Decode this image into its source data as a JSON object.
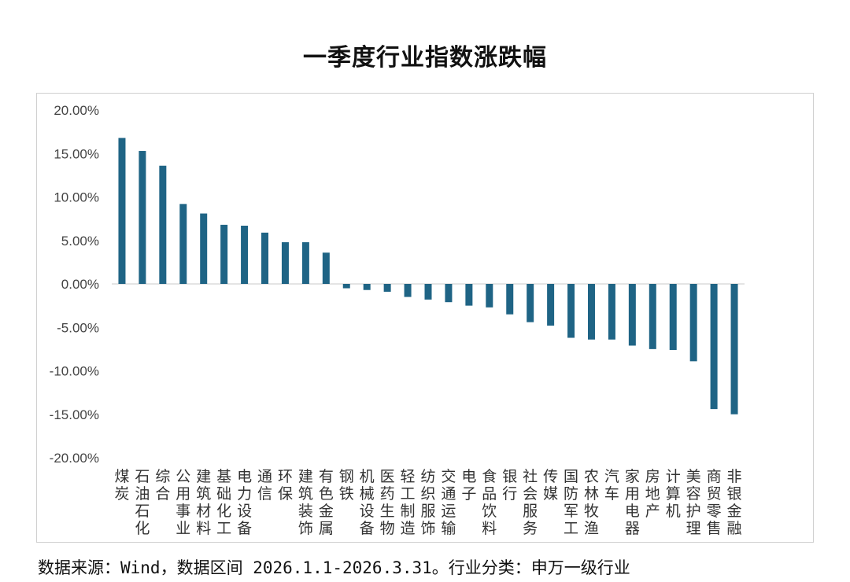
{
  "chart_data": {
    "type": "bar",
    "title": "一季度行业指数涨跌幅",
    "xlabel": "",
    "ylabel": "",
    "ylim": [
      -20,
      20
    ],
    "ytick_step": 5,
    "ytick_labels": [
      "20.00%",
      "15.00%",
      "10.00%",
      "5.00%",
      "0.00%",
      "-5.00%",
      "-10.00%",
      "-15.00%",
      "-20.00%"
    ],
    "bar_color": "#1f6485",
    "grid": false,
    "categories": [
      "煤炭",
      "石油石化",
      "综合",
      "公用事业",
      "建筑材料",
      "基础化工",
      "电力设备",
      "通信",
      "环保",
      "建筑装饰",
      "有色金属",
      "钢铁",
      "机械设备",
      "医药生物",
      "轻工制造",
      "纺织服饰",
      "交通运输",
      "电子",
      "食品饮料",
      "银行",
      "社会服务",
      "传媒",
      "国防军工",
      "农林牧渔",
      "汽车",
      "家用电器",
      "房地产",
      "计算机",
      "美容护理",
      "商贸零售",
      "非银金融"
    ],
    "values": [
      16.8,
      15.3,
      13.6,
      9.2,
      8.1,
      6.8,
      6.7,
      5.9,
      4.8,
      4.8,
      3.6,
      -0.5,
      -0.7,
      -0.9,
      -1.5,
      -1.8,
      -2.1,
      -2.5,
      -2.7,
      -3.5,
      -4.4,
      -4.8,
      -6.2,
      -6.4,
      -6.4,
      -7.1,
      -7.5,
      -7.6,
      -8.9,
      -14.4,
      -15.0
    ]
  },
  "footer": "数据来源：Wind，数据区间 2026.1.1-2026.3.31。行业分类：申万一级行业"
}
